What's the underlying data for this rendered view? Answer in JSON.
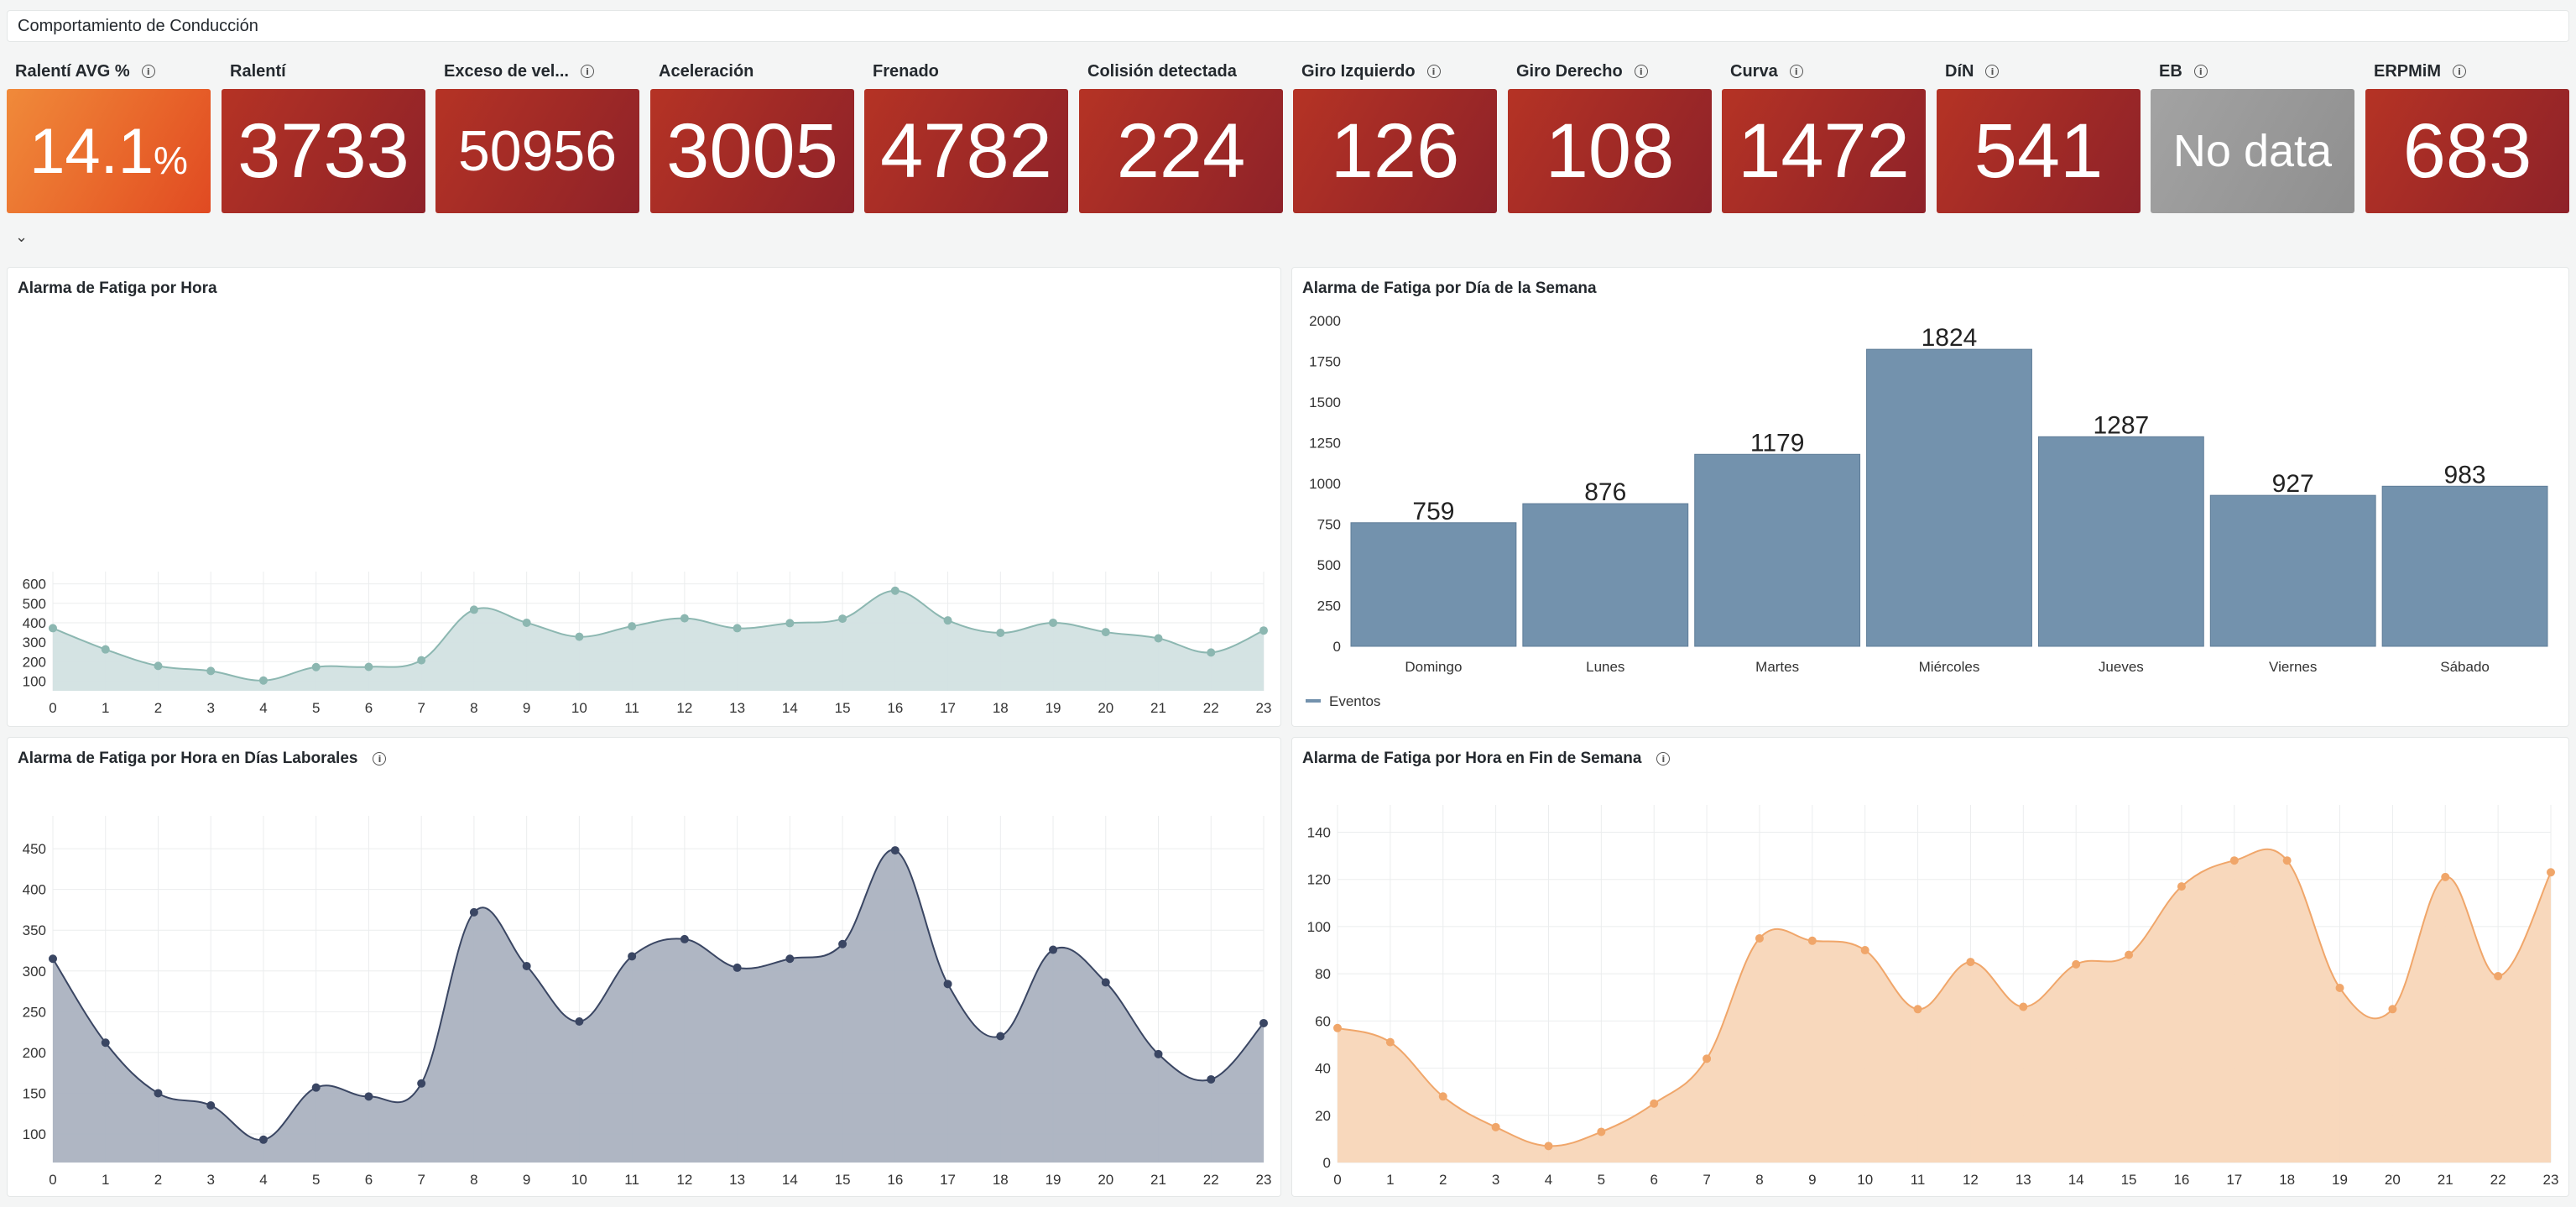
{
  "dashboard": {
    "title": "Comportamiento de Conducción",
    "collapse_icon": "chevron-down-icon"
  },
  "stats": [
    {
      "label": "Ralentí AVG %",
      "value": "14.1",
      "unit": "%",
      "info": true,
      "color": "orange"
    },
    {
      "label": "Ralentí",
      "value": "3733",
      "info": false,
      "color": "red"
    },
    {
      "label": "Exceso de vel...",
      "value": "50956",
      "info": true,
      "color": "red"
    },
    {
      "label": "Aceleración",
      "value": "3005",
      "info": false,
      "color": "red"
    },
    {
      "label": "Frenado",
      "value": "4782",
      "info": false,
      "color": "red"
    },
    {
      "label": "Colisión detectada",
      "value": "224",
      "info": false,
      "color": "red"
    },
    {
      "label": "Giro Izquierdo",
      "value": "126",
      "info": true,
      "color": "red"
    },
    {
      "label": "Giro Derecho",
      "value": "108",
      "info": true,
      "color": "red"
    },
    {
      "label": "Curva",
      "value": "1472",
      "info": true,
      "color": "red"
    },
    {
      "label": "DíN",
      "value": "541",
      "info": true,
      "color": "red"
    },
    {
      "label": "EB",
      "value": "No data",
      "info": true,
      "color": "grey"
    },
    {
      "label": "ERPMiM",
      "value": "683",
      "info": true,
      "color": "red"
    }
  ],
  "colors": {
    "red": "#a12a26",
    "orange": "#ea6a2c",
    "grey": "#939393",
    "teal_line": "#8cb7b1",
    "teal_fill": "#d2e2e1",
    "bar": "#7392ad",
    "navy_line": "#3a4663",
    "navy_fill": "#abb2c0",
    "peach_line": "#f0a66a",
    "peach_fill": "#f8d6b8"
  },
  "chart_data": [
    {
      "id": "hour",
      "type": "area",
      "title": "Alarma de Fatiga por Hora",
      "x": [
        0,
        1,
        2,
        3,
        4,
        5,
        6,
        7,
        8,
        9,
        10,
        11,
        12,
        13,
        14,
        15,
        16,
        17,
        18,
        19,
        20,
        21,
        22,
        23
      ],
      "values": [
        372,
        263,
        178,
        152,
        103,
        172,
        173,
        207,
        467,
        400,
        328,
        382,
        423,
        372,
        398,
        421,
        565,
        412,
        348,
        400,
        352,
        320,
        247,
        360
      ],
      "ylim": [
        50,
        620
      ],
      "yticks": [
        100,
        200,
        300,
        400,
        500,
        600
      ],
      "grid": true,
      "color": "teal"
    },
    {
      "id": "weekday",
      "type": "bar",
      "title": "Alarma de Fatiga por Día de la Semana",
      "categories": [
        "Domingo",
        "Lunes",
        "Martes",
        "Miércoles",
        "Jueves",
        "Viernes",
        "Sábado"
      ],
      "values": [
        759,
        876,
        1179,
        1824,
        1287,
        927,
        983
      ],
      "ylim": [
        0,
        2000
      ],
      "yticks": [
        0,
        250,
        500,
        750,
        1000,
        1250,
        1500,
        1750,
        2000
      ],
      "legend": "Eventos",
      "legend_position": "bottom-left",
      "color": "bar"
    },
    {
      "id": "workdays",
      "type": "area",
      "title": "Alarma de Fatiga por Hora en Días Laborales",
      "info": true,
      "x": [
        0,
        1,
        2,
        3,
        4,
        5,
        6,
        7,
        8,
        9,
        10,
        11,
        12,
        13,
        14,
        15,
        16,
        17,
        18,
        19,
        20,
        21,
        22,
        23
      ],
      "values": [
        315,
        212,
        150,
        135,
        93,
        157,
        146,
        162,
        372,
        306,
        238,
        318,
        339,
        304,
        315,
        333,
        448,
        284,
        220,
        326,
        286,
        198,
        167,
        236
      ],
      "ylim": [
        65,
        480
      ],
      "yticks": [
        100,
        150,
        200,
        250,
        300,
        350,
        400,
        450
      ],
      "grid": true,
      "color": "navy"
    },
    {
      "id": "weekend",
      "type": "area",
      "title": "Alarma de Fatiga por Hora en Fin de Semana",
      "info": true,
      "x": [
        0,
        1,
        2,
        3,
        4,
        5,
        6,
        7,
        8,
        9,
        10,
        11,
        12,
        13,
        14,
        15,
        16,
        17,
        18,
        19,
        20,
        21,
        22,
        23
      ],
      "values": [
        57,
        51,
        28,
        15,
        7,
        13,
        25,
        44,
        95,
        94,
        90,
        65,
        85,
        66,
        84,
        88,
        117,
        128,
        128,
        74,
        65,
        121,
        79,
        123
      ],
      "ylim": [
        0,
        148
      ],
      "yticks": [
        0,
        20,
        40,
        60,
        80,
        100,
        120,
        140
      ],
      "grid": true,
      "color": "peach"
    }
  ]
}
